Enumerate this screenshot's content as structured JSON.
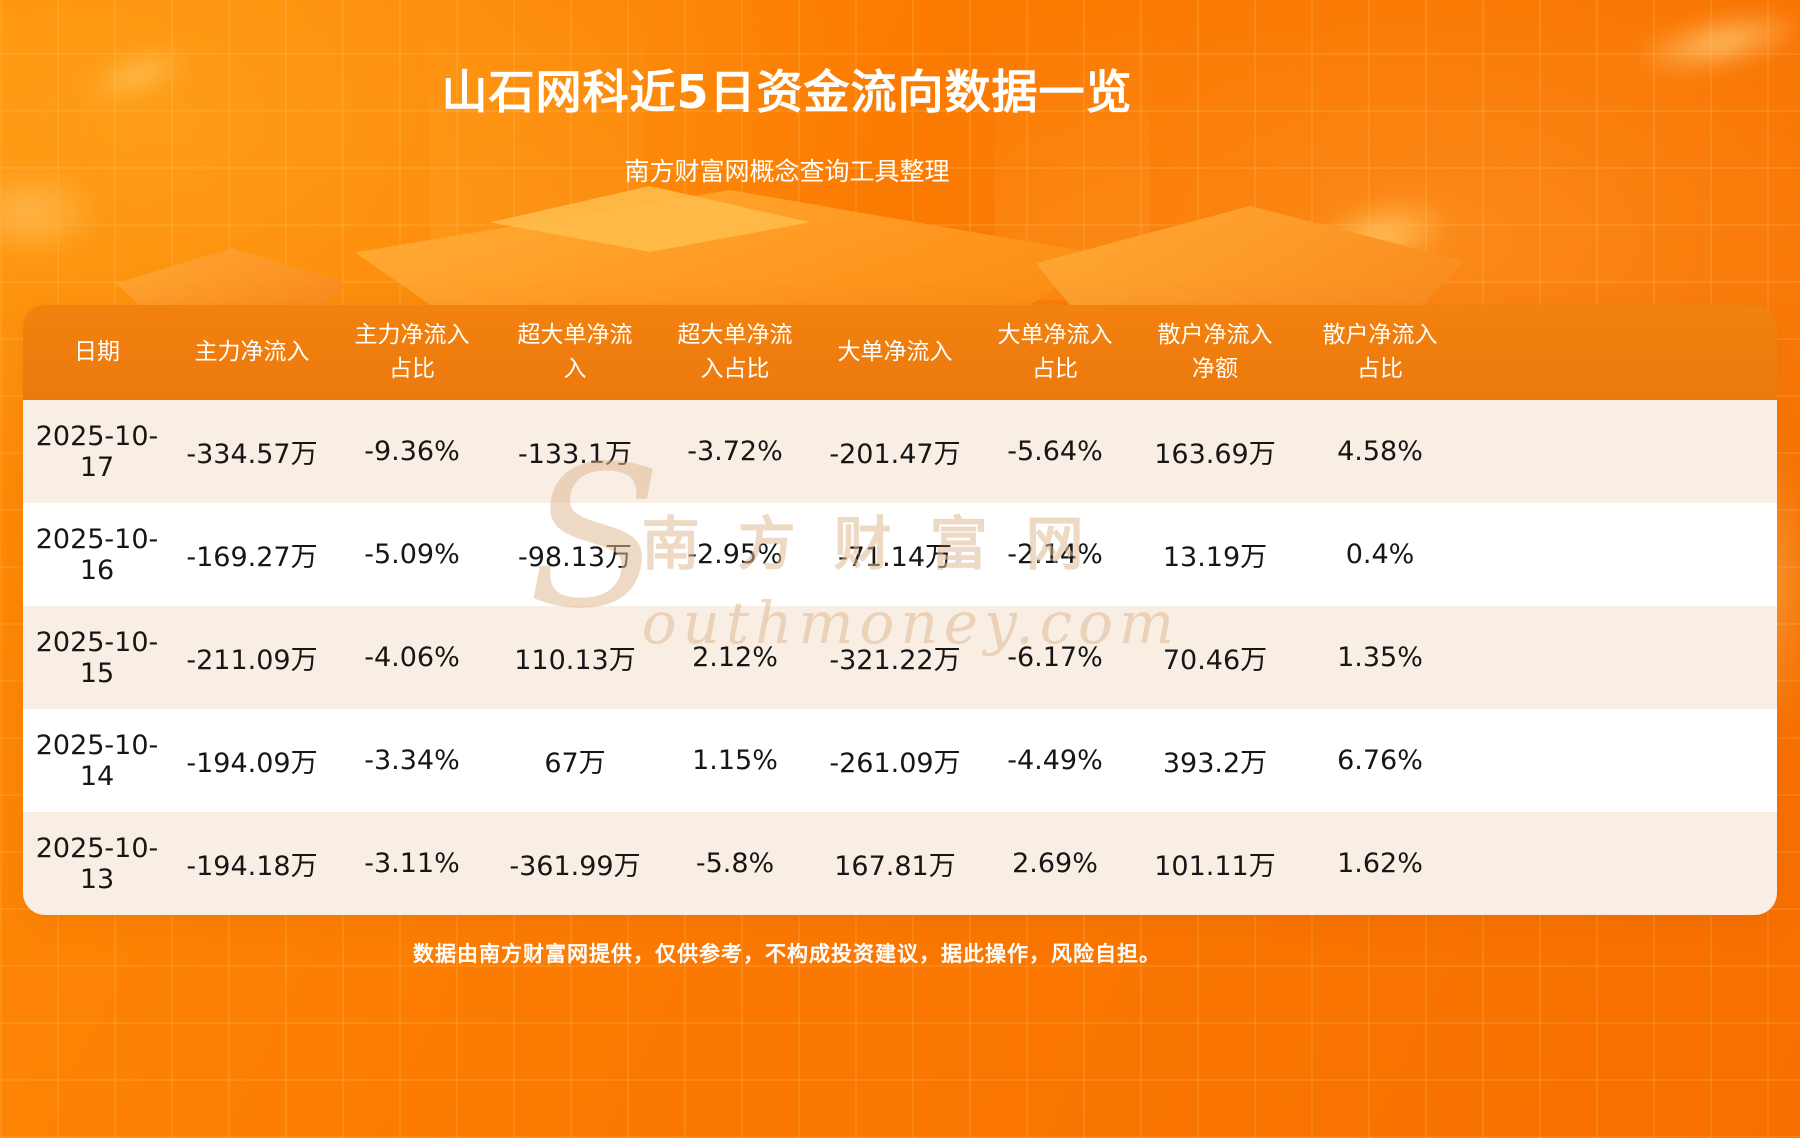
{
  "page": {
    "title": "山石网科近5日资金流向数据一览",
    "subtitle": "南方财富网概念查询工具整理",
    "footer": "数据由南方财富网提供，仅供参考，不构成投资建议，据此操作，风险自担。"
  },
  "watermark": {
    "initial": "S",
    "cn": "南方财富网",
    "en": "outhmoney.com"
  },
  "colors": {
    "background_orange": "#fb7a02",
    "table_header_orange": "#ef7d0e",
    "row_alt_cream": "#f8eee3",
    "row_white": "#ffffff",
    "text_dark": "#161616",
    "text_white": "#ffffff"
  },
  "table": {
    "headers_display": [
      "日期",
      "主力净流入",
      "主力净流入\n占比",
      "超大单净流\n入",
      "超大单净流\n入占比",
      "大单净流入",
      "大单净流入\n占比",
      "散户净流入\n净额",
      "散户净流入\n占比"
    ]
  },
  "chart_data": {
    "type": "table",
    "title": "山石网科近5日资金流向数据一览",
    "subtitle": "南方财富网概念查询工具整理",
    "columns": [
      "日期",
      "主力净流入",
      "主力净流入占比",
      "超大单净流入",
      "超大单净流入占比",
      "大单净流入",
      "大单净流入占比",
      "散户净流入净额",
      "散户净流入占比"
    ],
    "rows": [
      [
        "2025-10-17",
        "-334.57万",
        "-9.36%",
        "-133.1万",
        "-3.72%",
        "-201.47万",
        "-5.64%",
        "163.69万",
        "4.58%"
      ],
      [
        "2025-10-16",
        "-169.27万",
        "-5.09%",
        "-98.13万",
        "-2.95%",
        "-71.14万",
        "-2.14%",
        "13.19万",
        "0.4%"
      ],
      [
        "2025-10-15",
        "-211.09万",
        "-4.06%",
        "110.13万",
        "2.12%",
        "-321.22万",
        "-6.17%",
        "70.46万",
        "1.35%"
      ],
      [
        "2025-10-14",
        "-194.09万",
        "-3.34%",
        "67万",
        "1.15%",
        "-261.09万",
        "-4.49%",
        "393.2万",
        "6.76%"
      ],
      [
        "2025-10-13",
        "-194.18万",
        "-3.11%",
        "-361.99万",
        "-5.8%",
        "167.81万",
        "2.69%",
        "101.11万",
        "1.62%"
      ]
    ]
  }
}
